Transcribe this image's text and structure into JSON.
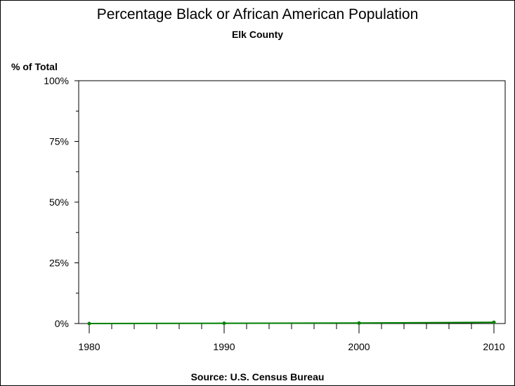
{
  "chart_data": {
    "type": "line",
    "title": "Percentage Black or African American Population",
    "subtitle": "Elk County",
    "ylabel": "% of Total",
    "xlabel": "",
    "source": "Source: U.S. Census Bureau",
    "x": [
      1980,
      1990,
      2000,
      2010
    ],
    "values": [
      0.0,
      0.1,
      0.2,
      0.5
    ],
    "xlim": [
      1980,
      2010
    ],
    "ylim": [
      0,
      100
    ],
    "xticks": [
      "1980",
      "1990",
      "2000",
      "2010"
    ],
    "yticks": [
      "0%",
      "25%",
      "50%",
      "75%",
      "100%"
    ],
    "grid": false,
    "series_color": "#007f00"
  }
}
